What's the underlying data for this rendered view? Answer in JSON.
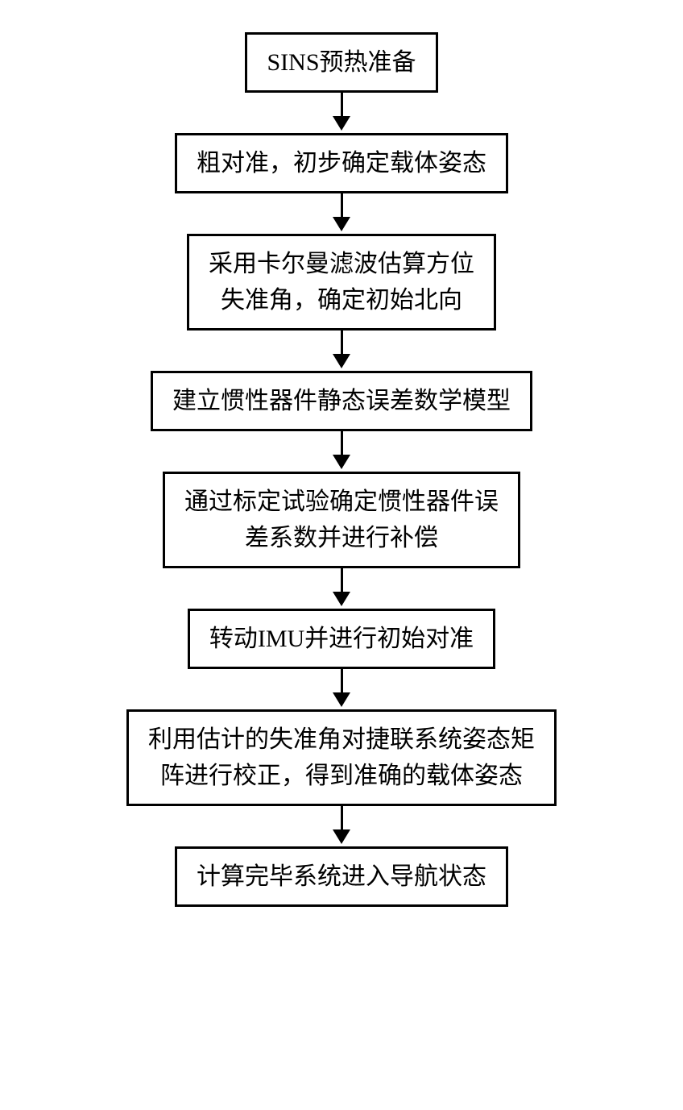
{
  "flowchart": {
    "type": "flowchart",
    "direction": "vertical",
    "background_color": "#ffffff",
    "box_border_color": "#000000",
    "box_border_width": 3,
    "box_background_color": "#ffffff",
    "arrow_color": "#000000",
    "arrow_line_width": 3,
    "font_family": "SimSun",
    "font_size": 30,
    "text_color": "#000000",
    "nodes": [
      {
        "id": "n1",
        "label": "SINS预热准备"
      },
      {
        "id": "n2",
        "label": "粗对准，初步确定载体姿态"
      },
      {
        "id": "n3",
        "label": "采用卡尔曼滤波估算方位\n失准角，确定初始北向"
      },
      {
        "id": "n4",
        "label": "建立惯性器件静态误差数学模型"
      },
      {
        "id": "n5",
        "label": "通过标定试验确定惯性器件误\n差系数并进行补偿"
      },
      {
        "id": "n6",
        "label": "转动IMU并进行初始对准"
      },
      {
        "id": "n7",
        "label": "利用估计的失准角对捷联系统姿态矩\n阵进行校正，得到准确的载体姿态"
      },
      {
        "id": "n8",
        "label": "计算完毕系统进入导航状态"
      }
    ],
    "edges": [
      {
        "from": "n1",
        "to": "n2"
      },
      {
        "from": "n2",
        "to": "n3"
      },
      {
        "from": "n3",
        "to": "n4"
      },
      {
        "from": "n4",
        "to": "n5"
      },
      {
        "from": "n5",
        "to": "n6"
      },
      {
        "from": "n6",
        "to": "n7"
      },
      {
        "from": "n7",
        "to": "n8"
      }
    ]
  }
}
